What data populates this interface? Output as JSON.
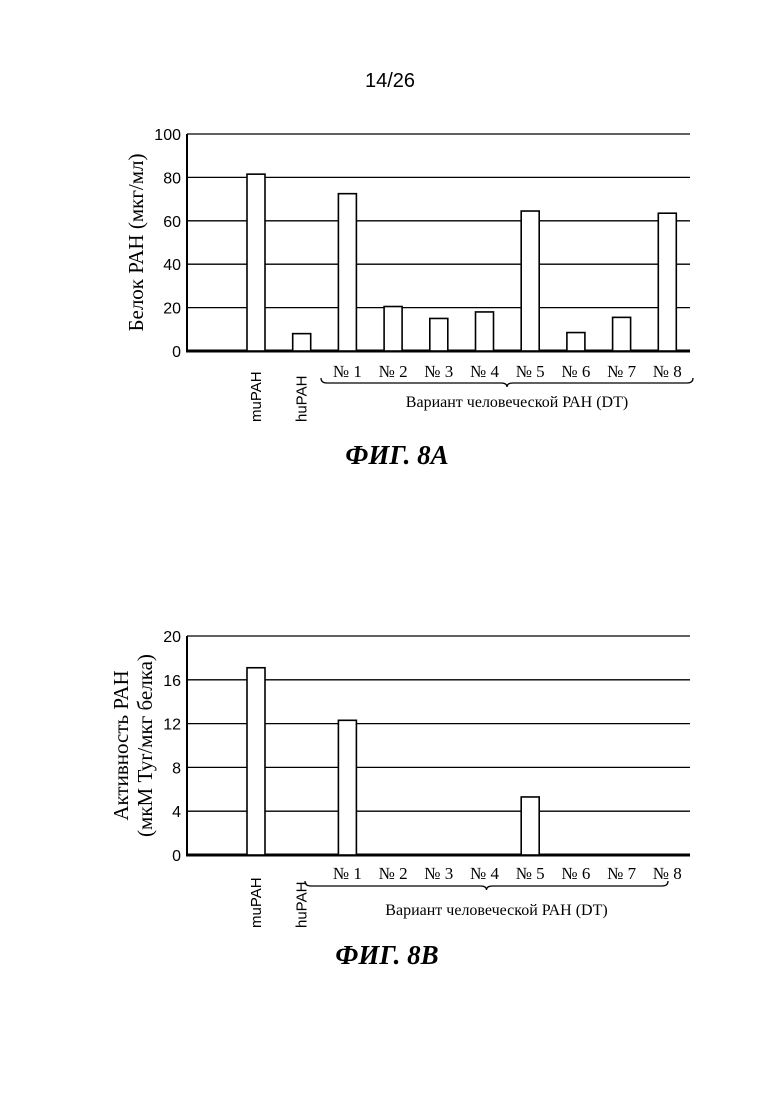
{
  "page": {
    "number": "14/26"
  },
  "chart_data": [
    {
      "type": "bar",
      "figure_label": "ФИГ. 8A",
      "ylabel": "Белок РАН (мкг/мл)",
      "ylabel_lines": [
        "Белок РАН (мкг/мл)"
      ],
      "ylim": [
        0,
        100
      ],
      "yticks": [
        0,
        20,
        40,
        60,
        80,
        100
      ],
      "grid": true,
      "categories": [
        "muPAH",
        "huPAH",
        "№ 1",
        "№ 2",
        "№ 3",
        "№ 4",
        "№ 5",
        "№ 6",
        "№ 7",
        "№ 8"
      ],
      "values": [
        81.5,
        8,
        72.5,
        20.5,
        15,
        18,
        64.5,
        8.5,
        15.5,
        63.5
      ],
      "group_label": "Вариант человеческой РАН (DT)",
      "bar_color": "#ffffff",
      "line_color": "#000000"
    },
    {
      "type": "bar",
      "figure_label": "ФИГ. 8B",
      "ylabel": "Активность РАН (мкМ Tyr/мкг белка)",
      "ylabel_lines": [
        "Активность РАН",
        "(мкМ Tyr/мкг белка)"
      ],
      "ylim": [
        0,
        20
      ],
      "yticks": [
        0,
        4,
        8,
        12,
        16,
        20
      ],
      "grid": true,
      "categories": [
        "muPAH",
        "huPAH",
        "№ 1",
        "№ 2",
        "№ 3",
        "№ 4",
        "№ 5",
        "№ 6",
        "№ 7",
        "№ 8"
      ],
      "values": [
        17.1,
        0,
        12.3,
        0,
        0,
        0,
        5.3,
        0,
        0,
        0
      ],
      "group_label": "Вариант человеческой РАН (DT)",
      "bar_color": "#ffffff",
      "line_color": "#000000"
    }
  ]
}
